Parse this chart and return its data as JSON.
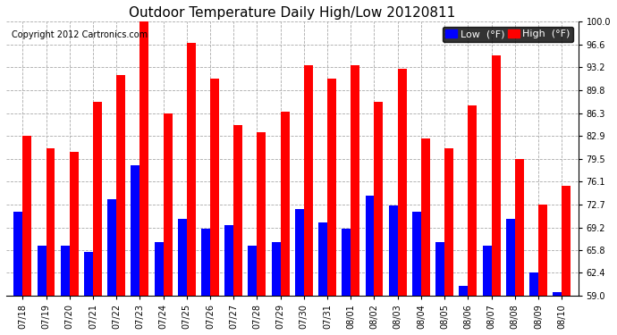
{
  "title": "Outdoor Temperature Daily High/Low 20120811",
  "copyright": "Copyright 2012 Cartronics.com",
  "legend_low": "Low  (°F)",
  "legend_high": "High  (°F)",
  "dates": [
    "07/18",
    "07/19",
    "07/20",
    "07/21",
    "07/22",
    "07/23",
    "07/24",
    "07/25",
    "07/26",
    "07/27",
    "07/28",
    "07/29",
    "07/30",
    "07/31",
    "08/01",
    "08/02",
    "08/03",
    "08/04",
    "08/05",
    "08/06",
    "08/07",
    "08/08",
    "08/09",
    "08/10"
  ],
  "highs": [
    82.9,
    81.0,
    80.5,
    88.0,
    92.0,
    100.0,
    86.3,
    96.8,
    91.5,
    84.5,
    83.5,
    86.5,
    93.5,
    91.5,
    93.5,
    88.0,
    93.0,
    82.5,
    81.0,
    87.5,
    95.0,
    79.5,
    72.7,
    75.5
  ],
  "lows": [
    71.5,
    66.5,
    66.5,
    65.5,
    73.5,
    78.5,
    67.0,
    70.5,
    69.0,
    69.5,
    66.5,
    67.0,
    72.0,
    70.0,
    69.0,
    74.0,
    72.5,
    71.5,
    67.0,
    60.5,
    66.5,
    70.5,
    62.5,
    59.5
  ],
  "ylim": [
    59.0,
    100.0
  ],
  "yticks": [
    59.0,
    62.4,
    65.8,
    69.2,
    72.7,
    76.1,
    79.5,
    82.9,
    86.3,
    89.8,
    93.2,
    96.6,
    100.0
  ],
  "bar_width": 0.38,
  "high_color": "#ff0000",
  "low_color": "#0000ff",
  "bg_color": "#ffffff",
  "grid_color": "#ffffff",
  "plot_bg_color": "#ffffff",
  "title_fontsize": 11,
  "copyright_fontsize": 7,
  "tick_fontsize": 7,
  "legend_fontsize": 8,
  "ybase": 59.0
}
